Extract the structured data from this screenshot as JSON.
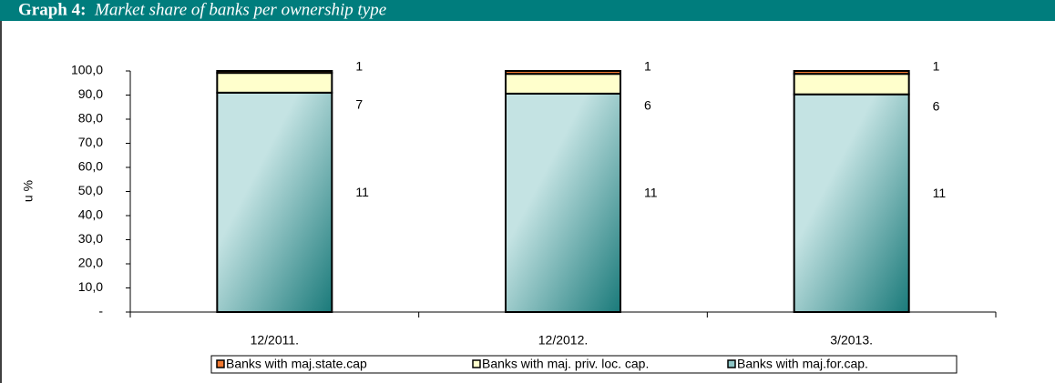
{
  "chart_data": {
    "type": "stacked_bar",
    "title_prefix": "Graph 4:",
    "title": "Market share of banks per ownership type",
    "y_label": "u %",
    "categories": [
      "12/2011.",
      "12/2012.",
      "3/2013."
    ],
    "series": [
      {
        "name": "Banks with maj.for.cap.",
        "color": "#1a7a7a",
        "values": [
          91.0,
          90.6,
          90.3
        ],
        "count_labels": [
          11,
          11,
          11
        ]
      },
      {
        "name": "Banks with maj. priv. loc. cap.",
        "color": "#ffffcc",
        "values": [
          8.2,
          8.2,
          8.5
        ],
        "count_labels": [
          7,
          6,
          6
        ]
      },
      {
        "name": "Banks with maj.state.cap",
        "color": "#f07830",
        "values": [
          0.8,
          1.2,
          1.2
        ],
        "count_labels": [
          1,
          1,
          1
        ]
      }
    ],
    "legend_order": [
      2,
      1,
      0
    ],
    "ylim": [
      0,
      100
    ],
    "yticks": [
      {
        "value": 0,
        "label": "-"
      },
      {
        "value": 10,
        "label": "10,0"
      },
      {
        "value": 20,
        "label": "20,0"
      },
      {
        "value": 30,
        "label": "30,0"
      },
      {
        "value": 40,
        "label": "40,0"
      },
      {
        "value": 50,
        "label": "50,0"
      },
      {
        "value": 60,
        "label": "60,0"
      },
      {
        "value": 70,
        "label": "70,0"
      },
      {
        "value": 80,
        "label": "80,0"
      },
      {
        "value": 90,
        "label": "90,0"
      },
      {
        "value": 100,
        "label": "100,0"
      }
    ]
  }
}
